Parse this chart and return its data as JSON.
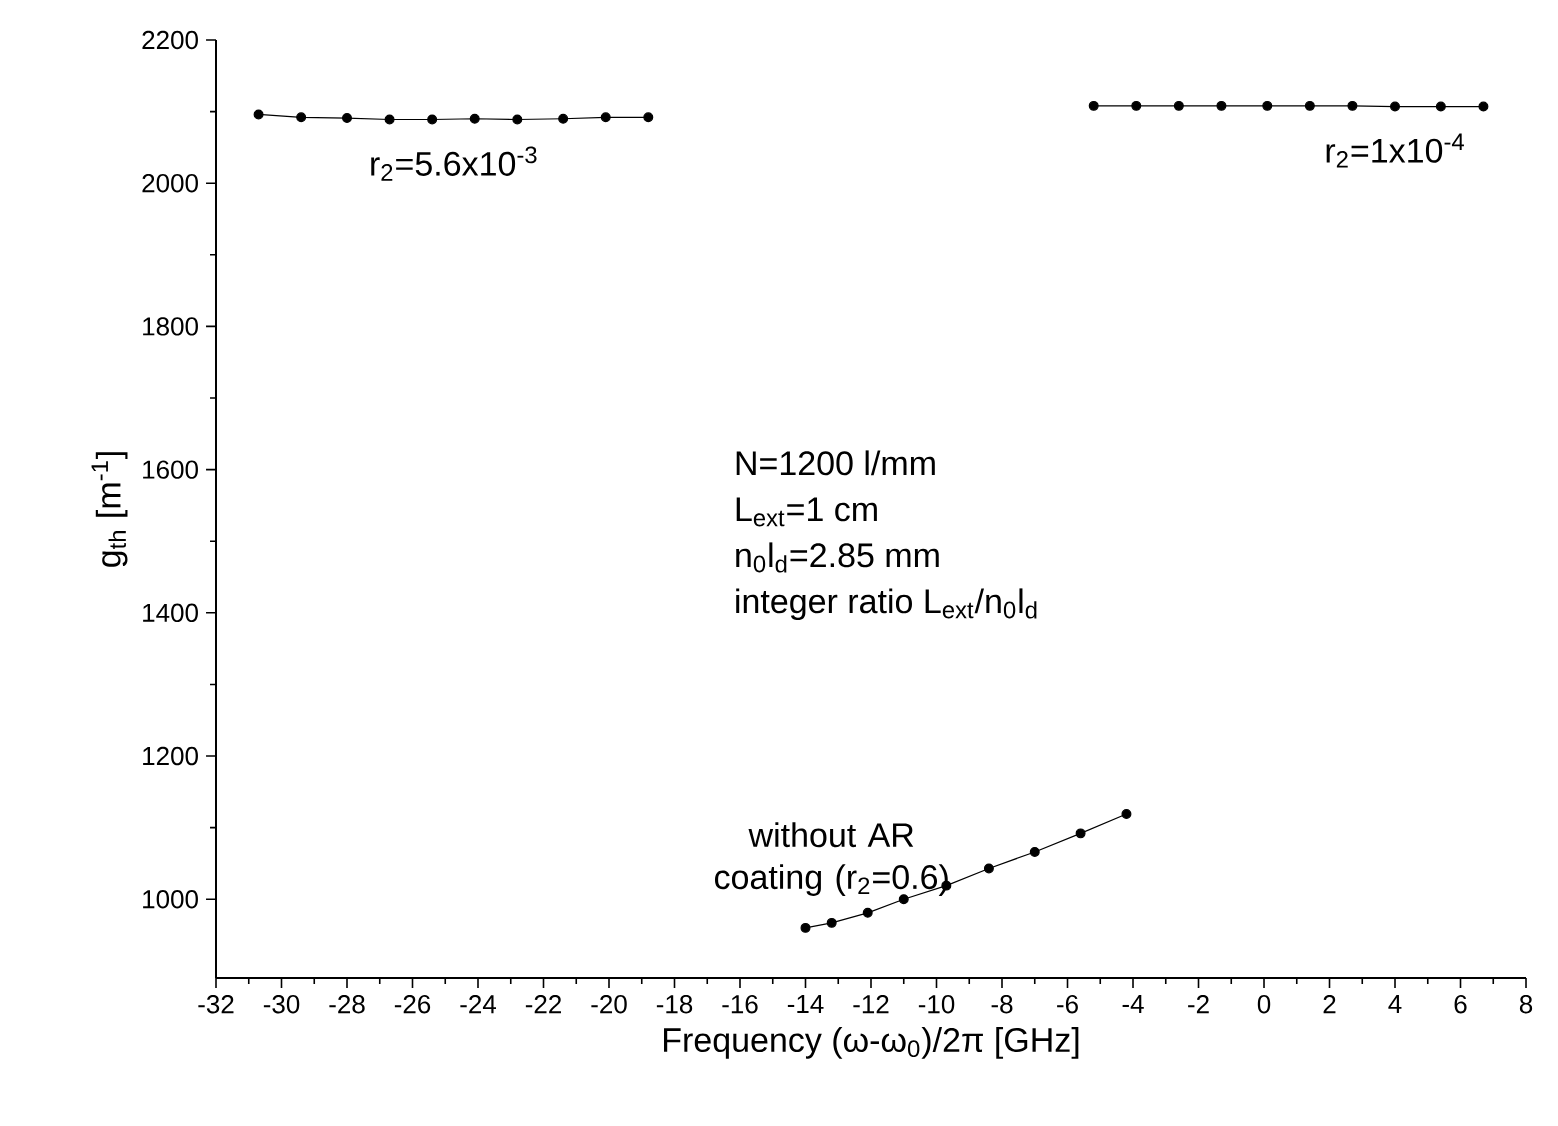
{
  "chart_data": {
    "type": "line",
    "xlabel": "Frequency (ω-ω$_{0}$)/2π [GHz]",
    "ylabel": "g$_{th}$ [m$^{-1}$]",
    "xlim": [
      -32,
      8
    ],
    "ylim": [
      890,
      2200
    ],
    "xticks": [
      -32,
      -30,
      -28,
      -26,
      -24,
      -22,
      -20,
      -18,
      -16,
      -14,
      -12,
      -10,
      -8,
      -6,
      -4,
      -2,
      0,
      2,
      4,
      6,
      8
    ],
    "yticks": [
      1000,
      1200,
      1400,
      1600,
      1800,
      2000,
      2200
    ],
    "marker": "circle",
    "line_style": "solid",
    "grid": false,
    "legend": false,
    "annotations": [
      "N=1200 l/mm",
      "L$_{ext}$=1 cm",
      "n$_{0}$l$_{d}$=2.85 mm",
      "integer ratio L$_{ext}$/n$_{0}$l$_{d}$"
    ],
    "series": [
      {
        "name": "r$_{2}$=5.6x10$^{-3}$",
        "color": "#000000",
        "x": [
          -30.7,
          -29.4,
          -28.0,
          -26.7,
          -25.4,
          -24.1,
          -22.8,
          -21.4,
          -20.1,
          -18.8
        ],
        "values": [
          2096,
          2092,
          2091,
          2089,
          2089,
          2090,
          2089,
          2090,
          2092,
          2092
        ]
      },
      {
        "name": "r$_{2}$=1x10$^{-4}$",
        "color": "#000000",
        "x": [
          -5.2,
          -3.9,
          -2.6,
          -1.3,
          0.1,
          1.4,
          2.7,
          4.0,
          5.4,
          6.7
        ],
        "values": [
          2108,
          2108,
          2108,
          2108,
          2108,
          2108,
          2108,
          2107,
          2107,
          2107
        ]
      },
      {
        "name": "without AR coating (r$_{2}$=0.6)",
        "color": "#000000",
        "x": [
          -14.0,
          -13.2,
          -12.1,
          -11.0,
          -9.7,
          -8.4,
          -7.0,
          -5.6,
          -4.2
        ],
        "values": [
          960,
          967,
          981,
          1000,
          1019,
          1043,
          1066,
          1092,
          1119
        ]
      }
    ]
  }
}
